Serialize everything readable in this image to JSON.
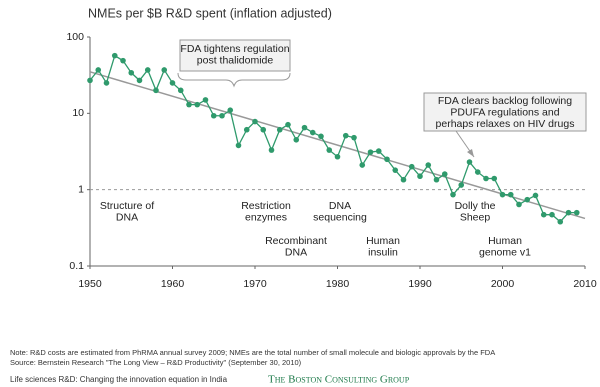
{
  "chart_data": {
    "type": "line",
    "title": "NMEs per $B R&D spent (inflation adjusted)",
    "log_scale": true,
    "xlim": [
      1950,
      2010
    ],
    "xticks": [
      1950,
      1960,
      1970,
      1980,
      1990,
      2000,
      2010
    ],
    "ylim": [
      0.1,
      100
    ],
    "yticks": [
      0.1,
      1,
      10,
      100
    ],
    "reference_line": 1,
    "series": [
      {
        "color": "#2f9a6c",
        "x": [
          1950,
          1951,
          1952,
          1953,
          1954,
          1955,
          1956,
          1957,
          1958,
          1959,
          1960,
          1961,
          1962,
          1963,
          1964,
          1965,
          1966,
          1967,
          1968,
          1969,
          1970,
          1971,
          1972,
          1973,
          1974,
          1975,
          1976,
          1977,
          1978,
          1979,
          1980,
          1981,
          1982,
          1983,
          1984,
          1985,
          1986,
          1987,
          1988,
          1989,
          1990,
          1991,
          1992,
          1993,
          1994,
          1995,
          1996,
          1997,
          1998,
          1999,
          2000,
          2001,
          2002,
          2003,
          2004,
          2005,
          2006,
          2007,
          2008,
          2009
        ],
        "values": [
          27,
          37,
          25,
          57,
          49,
          34,
          27,
          37,
          20,
          37,
          25,
          20,
          13,
          13,
          15,
          9.3,
          9.3,
          11,
          3.8,
          6.1,
          7.8,
          6.1,
          3.3,
          6.1,
          7.1,
          4.5,
          6.5,
          5.6,
          5,
          3.3,
          2.7,
          5.1,
          4.8,
          2.1,
          3.1,
          3.2,
          2.5,
          1.8,
          1.35,
          2,
          1.5,
          2.1,
          1.35,
          1.6,
          0.86,
          1.15,
          2.3,
          1.7,
          1.4,
          1.4,
          0.86,
          0.86,
          0.64,
          0.74,
          0.84,
          0.47,
          0.47,
          0.38,
          0.5,
          0.5
        ]
      }
    ],
    "trend": {
      "color": "#999999",
      "x": [
        1950,
        2010
      ],
      "values": [
        35,
        0.42
      ]
    },
    "annotations": [
      {
        "lines": [
          "FDA tightens regulation",
          "post thalidomide"
        ]
      },
      {
        "lines": [
          "FDA clears backlog following",
          "PDUFA regulations and",
          "perhaps relaxes on HIV drugs"
        ]
      }
    ],
    "events": [
      {
        "lines": [
          "Structure of",
          "DNA"
        ]
      },
      {
        "lines": [
          "Restriction",
          "enzymes"
        ]
      },
      {
        "lines": [
          "Recombinant",
          "DNA"
        ]
      },
      {
        "lines": [
          "DNA",
          "sequencing"
        ]
      },
      {
        "lines": [
          "Human",
          "insulin"
        ]
      },
      {
        "lines": [
          "Dolly the",
          "Sheep"
        ]
      },
      {
        "lines": [
          "Human",
          "genome v1"
        ]
      }
    ],
    "footer": {
      "note": "Note: R&D costs are estimated from PhRMA annual survey 2009; NMEs are the total number of small molecule and biologic approvals by the FDA",
      "source": "Source: Bernstein Research \"The Long View – R&D Productivity\" (September 30, 2010)",
      "report": "Life sciences R&D: Changing the innovation equation in India",
      "brand": "The Boston Consulting Group"
    }
  }
}
